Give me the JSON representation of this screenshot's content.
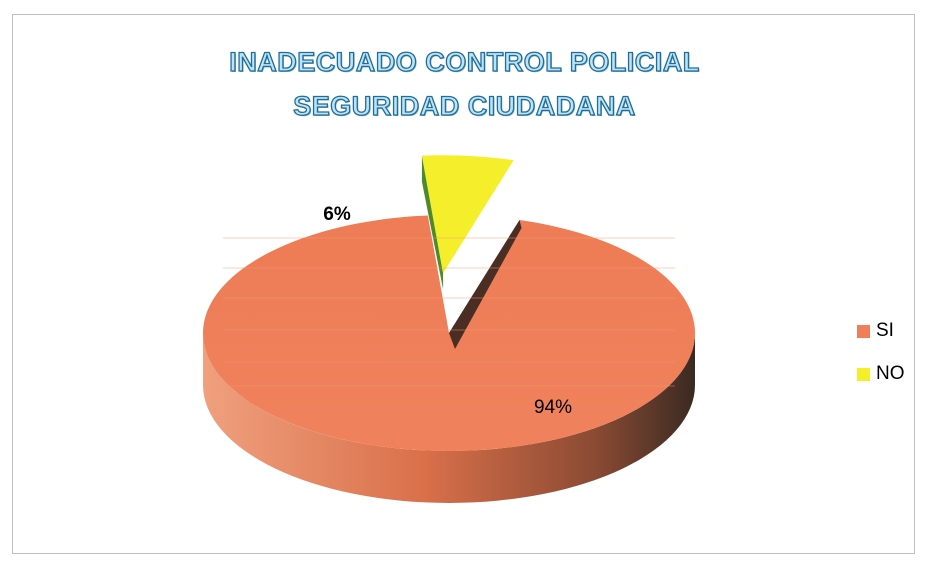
{
  "chart_data": {
    "type": "pie",
    "title_lines": [
      "INADECUADO CONTROL POLICIAL",
      "SEGURIDAD CIUDADANA"
    ],
    "categories": [
      "SI",
      "NO"
    ],
    "values": [
      94,
      6
    ],
    "data_labels": [
      "94%",
      "6%"
    ],
    "colors": [
      "#ee7f5a",
      "#f5ee2b"
    ],
    "exploded": "NO",
    "legend_position": "right",
    "style": "3d"
  }
}
